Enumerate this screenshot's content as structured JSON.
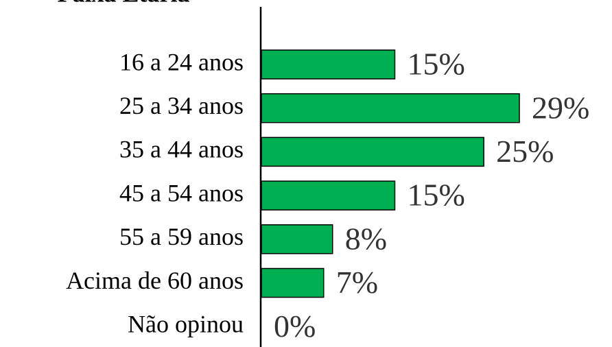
{
  "chart_data": {
    "type": "bar",
    "orientation": "horizontal",
    "title": "Faixa Etária",
    "categories": [
      "16 a 24 anos",
      "25 a 34 anos",
      "35 a 44 anos",
      "45 a 54 anos",
      "55 a 59 anos",
      "Acima de 60 anos",
      "Não opinou"
    ],
    "values": [
      15,
      29,
      25,
      15,
      8,
      7,
      0
    ],
    "value_labels": [
      "15%",
      "29%",
      "25%",
      "15%",
      "8%",
      "7%",
      "0%"
    ],
    "color": "#00b050"
  }
}
